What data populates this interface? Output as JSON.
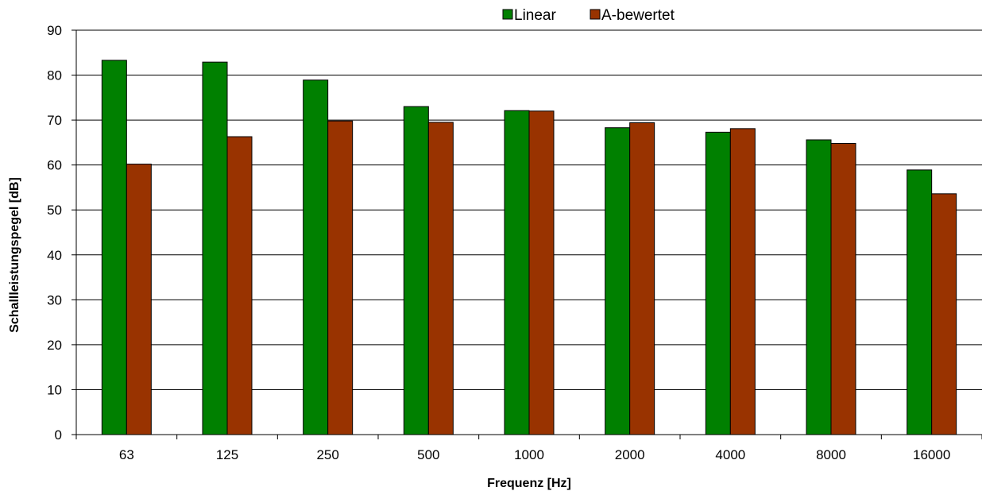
{
  "chart_data": {
    "type": "bar",
    "title": "",
    "xlabel": "Frequenz  [Hz]",
    "ylabel": "Schallleistungspegel [dB]",
    "ylim": [
      0,
      90
    ],
    "yticks": [
      0,
      10,
      20,
      30,
      40,
      50,
      60,
      70,
      80,
      90
    ],
    "grid": true,
    "legend_position": "top-center",
    "categories": [
      "63",
      "125",
      "250",
      "500",
      "1000",
      "2000",
      "4000",
      "8000",
      "16000"
    ],
    "series": [
      {
        "name": "Linear",
        "color": "#008000",
        "values": [
          83.3,
          82.9,
          78.9,
          73.0,
          72.1,
          68.3,
          67.3,
          65.6,
          58.9
        ]
      },
      {
        "name": "A-bewertet",
        "color": "#993300",
        "values": [
          60.2,
          66.3,
          69.8,
          69.5,
          72.0,
          69.4,
          68.1,
          64.8,
          53.6
        ]
      }
    ]
  }
}
